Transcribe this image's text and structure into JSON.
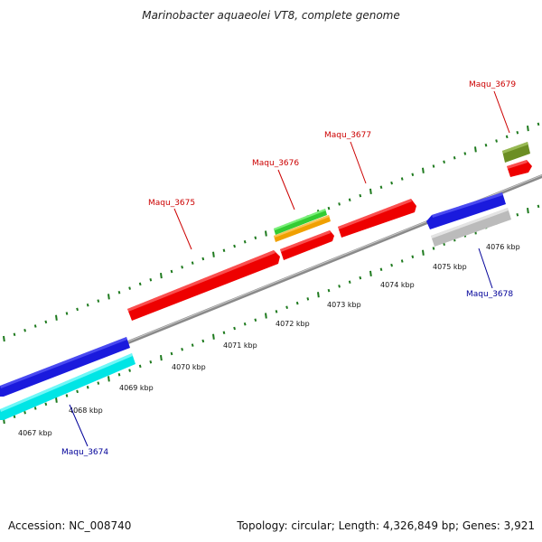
{
  "title": "Marinobacter aquaeolei VT8, complete genome",
  "footer": {
    "accession": "Accession: NC_008740",
    "topology": "Topology: circular; Length: 4,326,849 bp; Genes: 3,921"
  },
  "colors": {
    "backbone": "#8a8a8a",
    "tick": "#1e7a1e",
    "forward_label": "#cc0000",
    "reverse_label": "#000099"
  },
  "map": {
    "kbp_ticks": [
      "4067 kbp",
      "4068 kbp",
      "4069 kbp",
      "4070 kbp",
      "4071 kbp",
      "4072 kbp",
      "4073 kbp",
      "4074 kbp",
      "4075 kbp",
      "4076 kbp"
    ],
    "genes": [
      {
        "name": "Maqu_3674",
        "strand": "reverse",
        "color": "#1a1add"
      },
      {
        "name": "",
        "strand": "reverse",
        "color": "#00e5e5"
      },
      {
        "name": "Maqu_3675",
        "strand": "forward",
        "color": "#ee0000"
      },
      {
        "name": "Maqu_3676",
        "strand": "forward",
        "color": "#ee0000"
      },
      {
        "name": "",
        "strand": "forward",
        "color": "#f0a000"
      },
      {
        "name": "",
        "strand": "forward",
        "color": "#33cc33"
      },
      {
        "name": "Maqu_3677",
        "strand": "forward",
        "color": "#ee0000"
      },
      {
        "name": "",
        "strand": "reverse",
        "color": "#1a1add"
      },
      {
        "name": "Maqu_3678",
        "strand": "reverse",
        "color": "#bbbbbb"
      },
      {
        "name": "Maqu_3679",
        "strand": "forward",
        "color": "#ee0000"
      },
      {
        "name": "",
        "strand": "forward",
        "color": "#6b8e23"
      }
    ]
  }
}
